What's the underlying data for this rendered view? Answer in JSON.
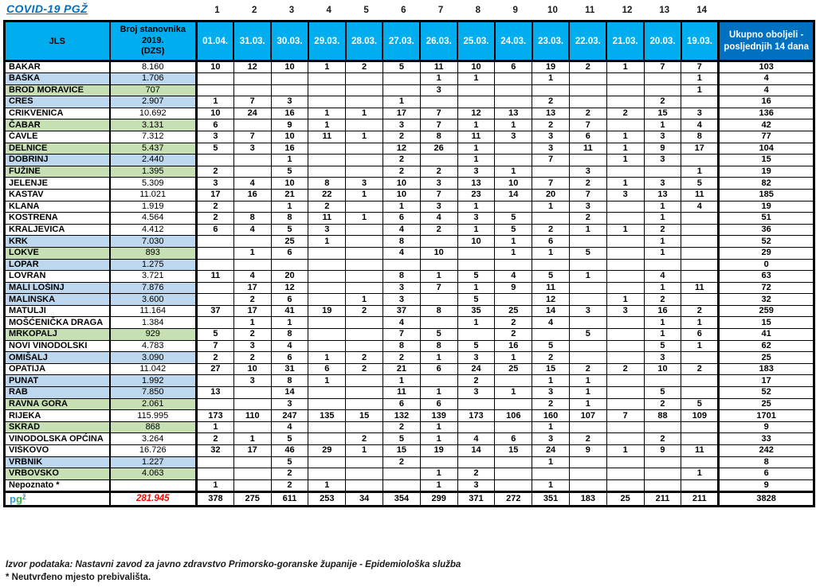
{
  "title": "COVID-19  PGŽ",
  "colors": {
    "header_cyan": "#00AEEF",
    "header_dark_blue": "#0070C0",
    "row_blue": "#BDD7EE",
    "row_green": "#C6E0B4",
    "total_population_red": "#FF0000",
    "title_blue": "#0070C0"
  },
  "table": {
    "col_numbers": [
      "1",
      "2",
      "3",
      "4",
      "5",
      "6",
      "7",
      "8",
      "9",
      "10",
      "11",
      "12",
      "13",
      "14"
    ],
    "headers": {
      "jls": "JLS",
      "population": "Broj stanovnika\n2019.\n(DZS)",
      "dates": [
        "01.04.",
        "31.03.",
        "30.03.",
        "29.03.",
        "28.03.",
        "27.03.",
        "26.03.",
        "25.03.",
        "24.03.",
        "23.03.",
        "22.03.",
        "21.03.",
        "20.03.",
        "19.03."
      ],
      "total": "Ukupno oboljeli -\nposljednjih 14 dana"
    },
    "rows": [
      {
        "name": "BAKAR",
        "population": "8.160",
        "color": "white",
        "values": [
          "10",
          "12",
          "10",
          "1",
          "2",
          "5",
          "11",
          "10",
          "6",
          "19",
          "2",
          "1",
          "7",
          "7"
        ],
        "total": "103"
      },
      {
        "name": "BAŠKA",
        "population": "1.706",
        "color": "blue",
        "values": [
          "",
          "",
          "",
          "",
          "",
          "",
          "1",
          "1",
          "",
          "1",
          "",
          "",
          "",
          "1"
        ],
        "total": "4"
      },
      {
        "name": "BROD MORAVICE",
        "population": "707",
        "color": "green",
        "values": [
          "",
          "",
          "",
          "",
          "",
          "",
          "3",
          "",
          "",
          "",
          "",
          "",
          "",
          "1"
        ],
        "total": "4"
      },
      {
        "name": "CRES",
        "population": "2.907",
        "color": "blue",
        "values": [
          "1",
          "7",
          "3",
          "",
          "",
          "1",
          "",
          "",
          "",
          "2",
          "",
          "",
          "2",
          ""
        ],
        "total": "16"
      },
      {
        "name": "CRIKVENICA",
        "population": "10.692",
        "color": "white",
        "values": [
          "10",
          "24",
          "16",
          "1",
          "1",
          "17",
          "7",
          "12",
          "13",
          "13",
          "2",
          "2",
          "15",
          "3"
        ],
        "total": "136"
      },
      {
        "name": "ČABAR",
        "population": "3.131",
        "color": "green",
        "values": [
          "6",
          "",
          "9",
          "1",
          "",
          "3",
          "7",
          "1",
          "1",
          "2",
          "7",
          "",
          "1",
          "4"
        ],
        "total": "42"
      },
      {
        "name": "ČAVLE",
        "population": "7.312",
        "color": "white",
        "values": [
          "3",
          "7",
          "10",
          "11",
          "1",
          "2",
          "8",
          "11",
          "3",
          "3",
          "6",
          "1",
          "3",
          "8"
        ],
        "total": "77"
      },
      {
        "name": "DELNICE",
        "population": "5.437",
        "color": "green",
        "values": [
          "5",
          "3",
          "16",
          "",
          "",
          "12",
          "26",
          "1",
          "",
          "3",
          "11",
          "1",
          "9",
          "17"
        ],
        "total": "104"
      },
      {
        "name": "DOBRINJ",
        "population": "2.440",
        "color": "blue",
        "values": [
          "",
          "",
          "1",
          "",
          "",
          "2",
          "",
          "1",
          "",
          "7",
          "",
          "1",
          "3",
          ""
        ],
        "total": "15"
      },
      {
        "name": "FUŽINE",
        "population": "1.395",
        "color": "green",
        "values": [
          "2",
          "",
          "5",
          "",
          "",
          "2",
          "2",
          "3",
          "1",
          "",
          "3",
          "",
          "",
          "1"
        ],
        "total": "19"
      },
      {
        "name": "JELENJE",
        "population": "5.309",
        "color": "white",
        "values": [
          "3",
          "4",
          "10",
          "8",
          "3",
          "10",
          "3",
          "13",
          "10",
          "7",
          "2",
          "1",
          "3",
          "5"
        ],
        "total": "82"
      },
      {
        "name": "KASTAV",
        "population": "11.021",
        "color": "white",
        "values": [
          "17",
          "16",
          "21",
          "22",
          "1",
          "10",
          "7",
          "23",
          "14",
          "20",
          "7",
          "3",
          "13",
          "11"
        ],
        "total": "185"
      },
      {
        "name": "KLANA",
        "population": "1.919",
        "color": "white",
        "values": [
          "2",
          "",
          "1",
          "2",
          "",
          "1",
          "3",
          "1",
          "",
          "1",
          "3",
          "",
          "1",
          "4"
        ],
        "total": "19"
      },
      {
        "name": "KOSTRENA",
        "population": "4.564",
        "color": "white",
        "values": [
          "2",
          "8",
          "8",
          "11",
          "1",
          "6",
          "4",
          "3",
          "5",
          "",
          "2",
          "",
          "1",
          ""
        ],
        "total": "51"
      },
      {
        "name": "KRALJEVICA",
        "population": "4.412",
        "color": "white",
        "values": [
          "6",
          "4",
          "5",
          "3",
          "",
          "4",
          "2",
          "1",
          "5",
          "2",
          "1",
          "1",
          "2",
          ""
        ],
        "total": "36"
      },
      {
        "name": "KRK",
        "population": "7.030",
        "color": "blue",
        "values": [
          "",
          "",
          "25",
          "1",
          "",
          "8",
          "",
          "10",
          "1",
          "6",
          "",
          "",
          "1",
          ""
        ],
        "total": "52"
      },
      {
        "name": "LOKVE",
        "population": "893",
        "color": "green",
        "values": [
          "",
          "1",
          "6",
          "",
          "",
          "4",
          "10",
          "",
          "1",
          "1",
          "5",
          "",
          "1",
          ""
        ],
        "total": "29"
      },
      {
        "name": "LOPAR",
        "population": "1.275",
        "color": "blue",
        "values": [
          "",
          "",
          "",
          "",
          "",
          "",
          "",
          "",
          "",
          "",
          "",
          "",
          "",
          ""
        ],
        "total": "0"
      },
      {
        "name": "LOVRAN",
        "population": "3.721",
        "color": "white",
        "values": [
          "11",
          "4",
          "20",
          "",
          "",
          "8",
          "1",
          "5",
          "4",
          "5",
          "1",
          "",
          "4",
          ""
        ],
        "total": "63"
      },
      {
        "name": "MALI LOŠINJ",
        "population": "7.876",
        "color": "blue",
        "values": [
          "",
          "17",
          "12",
          "",
          "",
          "3",
          "7",
          "1",
          "9",
          "11",
          "",
          "",
          "1",
          "11"
        ],
        "total": "72"
      },
      {
        "name": "MALINSKA",
        "population": "3.600",
        "color": "blue",
        "values": [
          "",
          "2",
          "6",
          "",
          "1",
          "3",
          "",
          "5",
          "",
          "12",
          "",
          "1",
          "2",
          ""
        ],
        "total": "32"
      },
      {
        "name": "MATULJI",
        "population": "11.164",
        "color": "white",
        "values": [
          "37",
          "17",
          "41",
          "19",
          "2",
          "37",
          "8",
          "35",
          "25",
          "14",
          "3",
          "3",
          "16",
          "2"
        ],
        "total": "259"
      },
      {
        "name": "MOŠĆENIČKA DRAGA",
        "population": "1.384",
        "color": "white",
        "values": [
          "",
          "1",
          "1",
          "",
          "",
          "4",
          "",
          "1",
          "2",
          "4",
          "",
          "",
          "1",
          "1"
        ],
        "total": "15"
      },
      {
        "name": "MRKOPALJ",
        "population": "929",
        "color": "green",
        "values": [
          "5",
          "2",
          "8",
          "",
          "",
          "7",
          "5",
          "",
          "2",
          "",
          "5",
          "",
          "1",
          "6"
        ],
        "total": "41"
      },
      {
        "name": "NOVI VINODOLSKI",
        "population": "4.783",
        "color": "white",
        "values": [
          "7",
          "3",
          "4",
          "",
          "",
          "8",
          "8",
          "5",
          "16",
          "5",
          "",
          "",
          "5",
          "1"
        ],
        "total": "62"
      },
      {
        "name": "OMIŠALJ",
        "population": "3.090",
        "color": "blue",
        "values": [
          "2",
          "2",
          "6",
          "1",
          "2",
          "2",
          "1",
          "3",
          "1",
          "2",
          "",
          "",
          "3",
          ""
        ],
        "total": "25"
      },
      {
        "name": "OPATIJA",
        "population": "11.042",
        "color": "white",
        "values": [
          "27",
          "10",
          "31",
          "6",
          "2",
          "21",
          "6",
          "24",
          "25",
          "15",
          "2",
          "2",
          "10",
          "2"
        ],
        "total": "183"
      },
      {
        "name": "PUNAT",
        "population": "1.992",
        "color": "blue",
        "values": [
          "",
          "3",
          "8",
          "1",
          "",
          "1",
          "",
          "2",
          "",
          "1",
          "1",
          "",
          "",
          ""
        ],
        "total": "17"
      },
      {
        "name": "RAB",
        "population": "7.850",
        "color": "blue",
        "values": [
          "13",
          "",
          "14",
          "",
          "",
          "11",
          "1",
          "3",
          "1",
          "3",
          "1",
          "",
          "5",
          ""
        ],
        "total": "52"
      },
      {
        "name": "RAVNA GORA",
        "population": "2.061",
        "color": "green",
        "values": [
          "",
          "",
          "3",
          "",
          "",
          "6",
          "6",
          "",
          "",
          "2",
          "1",
          "",
          "2",
          "5"
        ],
        "total": "25"
      },
      {
        "name": "RIJEKA",
        "population": "115.995",
        "color": "white",
        "values": [
          "173",
          "110",
          "247",
          "135",
          "15",
          "132",
          "139",
          "173",
          "106",
          "160",
          "107",
          "7",
          "88",
          "109"
        ],
        "total": "1701"
      },
      {
        "name": "SKRAD",
        "population": "868",
        "color": "green",
        "values": [
          "1",
          "",
          "4",
          "",
          "",
          "2",
          "1",
          "",
          "",
          "1",
          "",
          "",
          "",
          ""
        ],
        "total": "9"
      },
      {
        "name": "VINODOLSKA OPĆINA",
        "population": "3.264",
        "color": "white",
        "values": [
          "2",
          "1",
          "5",
          "",
          "2",
          "5",
          "1",
          "4",
          "6",
          "3",
          "2",
          "",
          "2",
          ""
        ],
        "total": "33"
      },
      {
        "name": "VIŠKOVO",
        "population": "16.726",
        "color": "white",
        "values": [
          "32",
          "17",
          "46",
          "29",
          "1",
          "15",
          "19",
          "14",
          "15",
          "24",
          "9",
          "1",
          "9",
          "11"
        ],
        "total": "242"
      },
      {
        "name": "VRBNIK",
        "population": "1.227",
        "color": "blue",
        "values": [
          "",
          "",
          "5",
          "",
          "",
          "2",
          "",
          "",
          "",
          "1",
          "",
          "",
          "",
          ""
        ],
        "total": "8"
      },
      {
        "name": "VRBOVSKO",
        "population": "4.063",
        "color": "green",
        "values": [
          "",
          "",
          "2",
          "",
          "",
          "",
          "1",
          "2",
          "",
          "",
          "",
          "",
          "",
          "1"
        ],
        "total": "6"
      },
      {
        "name": "Nepoznato *",
        "population": "",
        "color": "white",
        "values": [
          "1",
          "",
          "2",
          "1",
          "",
          "",
          "1",
          "3",
          "",
          "1",
          "",
          "",
          "",
          ""
        ],
        "total": "9"
      }
    ],
    "total_row": {
      "logo": {
        "p": "p",
        "g": "g",
        "z": "ž"
      },
      "population": "281.945",
      "values": [
        "378",
        "275",
        "611",
        "253",
        "34",
        "354",
        "299",
        "371",
        "272",
        "351",
        "183",
        "25",
        "211",
        "211"
      ],
      "total": "3828"
    }
  },
  "footer": {
    "source": "Izvor podataka: Nastavni zavod za javno zdravstvo Primorsko-goranske županije  - Epidemiološka služba",
    "note": "* Neutvrđeno mjesto prebivališta."
  }
}
